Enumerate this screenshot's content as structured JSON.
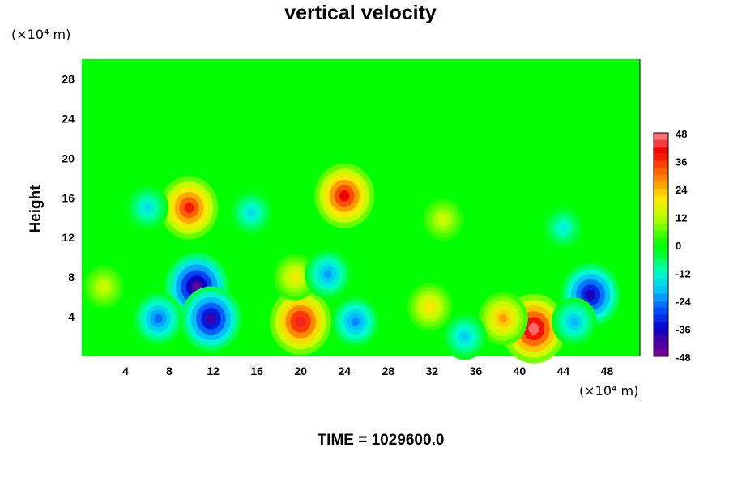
{
  "chart_data": {
    "type": "heatmap",
    "title": "vertical velocity",
    "ylabel": "Height",
    "xlabel": "",
    "x_unit": "(×10⁴ m)",
    "y_unit": "(×10⁴ m)",
    "x_ticks": [
      4,
      8,
      12,
      16,
      20,
      24,
      28,
      32,
      36,
      40,
      44,
      48
    ],
    "y_ticks": [
      4,
      8,
      12,
      16,
      20,
      24,
      28
    ],
    "xlim": [
      0,
      51
    ],
    "ylim": [
      0,
      30
    ],
    "colorbar": {
      "ticks": [
        48,
        36,
        24,
        12,
        0,
        -12,
        -24,
        -36,
        -48
      ],
      "range": [
        -48,
        48
      ]
    },
    "background_value": 0,
    "features": [
      {
        "x": 9.8,
        "y": 15.0,
        "value": 38
      },
      {
        "x": 24.0,
        "y": 16.2,
        "value": 40
      },
      {
        "x": 20.0,
        "y": 3.5,
        "value": 42
      },
      {
        "x": 41.3,
        "y": 2.8,
        "value": 46
      },
      {
        "x": 38.5,
        "y": 3.8,
        "value": 26
      },
      {
        "x": 31.8,
        "y": 5.0,
        "value": 20
      },
      {
        "x": 19.5,
        "y": 8.0,
        "value": 18
      },
      {
        "x": 2.0,
        "y": 7.0,
        "value": 14
      },
      {
        "x": 10.5,
        "y": 7.0,
        "value": -44
      },
      {
        "x": 11.8,
        "y": 3.8,
        "value": -40
      },
      {
        "x": 46.5,
        "y": 6.2,
        "value": -38
      },
      {
        "x": 7.0,
        "y": 3.8,
        "value": -26
      },
      {
        "x": 25.0,
        "y": 3.5,
        "value": -24
      },
      {
        "x": 45.0,
        "y": 3.5,
        "value": -20
      },
      {
        "x": 22.5,
        "y": 8.3,
        "value": -22
      },
      {
        "x": 6.0,
        "y": 15.0,
        "value": -16
      },
      {
        "x": 15.5,
        "y": 14.5,
        "value": -16
      },
      {
        "x": 44.0,
        "y": 13.0,
        "value": -14
      },
      {
        "x": 35.0,
        "y": 2.0,
        "value": -18
      },
      {
        "x": 33.0,
        "y": 13.8,
        "value": 14
      }
    ],
    "footer": "TIME = 1029600.0"
  }
}
